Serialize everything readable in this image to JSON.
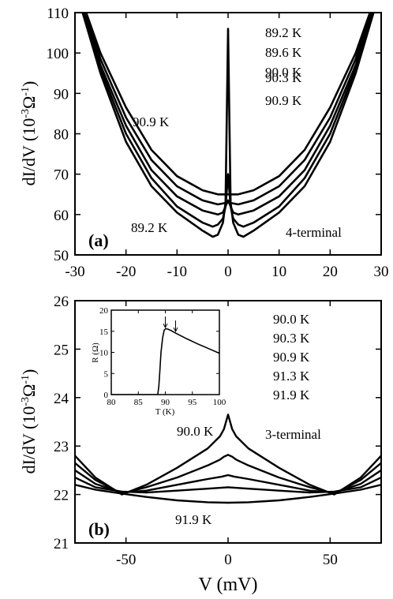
{
  "chart_data": [
    {
      "type": "line",
      "panel_label": "(a)",
      "annotation": "4-terminal",
      "xlabel": "",
      "ylabel": "dI/dV (10-3Ω-1)",
      "ylabel_parts": {
        "main": "dI/dV (10",
        "exp1": "-3",
        "mid": "Ω",
        "exp2": "-1",
        "end": ")"
      },
      "xlim": [
        -30,
        30
      ],
      "ylim": [
        50,
        110
      ],
      "xticks": [
        -30,
        -20,
        -10,
        0,
        10,
        20,
        30
      ],
      "yticks": [
        50,
        60,
        70,
        80,
        90,
        100,
        110
      ],
      "legend": [
        "89.2 K",
        "89.6 K",
        "90.0 K",
        "90.3 K",
        "90.9 K"
      ],
      "curve_labels": {
        "top": "90.9 K",
        "bottom": "89.2 K"
      },
      "series": [
        {
          "name": "89.2 K",
          "x": [
            -28.5,
            -25,
            -20,
            -15,
            -10,
            -5,
            -3,
            -2,
            -1,
            -0.5,
            0,
            0.5,
            1,
            2,
            3,
            5,
            10,
            15,
            20,
            25,
            28.5
          ],
          "y": [
            110,
            95,
            78,
            67,
            60.5,
            56,
            54.5,
            55,
            58,
            63,
            106,
            63,
            58,
            55,
            54.5,
            56,
            60.5,
            67,
            78,
            95,
            110
          ]
        },
        {
          "name": "89.6 K",
          "x": [
            -28.5,
            -25,
            -20,
            -15,
            -10,
            -5,
            -3,
            -2,
            -1,
            -0.5,
            0,
            0.5,
            1,
            2,
            3,
            5,
            10,
            15,
            20,
            25,
            28.5
          ],
          "y": [
            110,
            96,
            80,
            69,
            62,
            58,
            57,
            57.5,
            59,
            62,
            70,
            62,
            59,
            57.5,
            57,
            58,
            62,
            69,
            80,
            96,
            110
          ]
        },
        {
          "name": "90.0 K",
          "x": [
            -28.3,
            -25,
            -20,
            -15,
            -10,
            -5,
            -2,
            -1,
            0,
            1,
            2,
            5,
            10,
            15,
            20,
            25,
            28.3
          ],
          "y": [
            110,
            97,
            82,
            71,
            64.5,
            61,
            60,
            60.5,
            63.5,
            60.5,
            60,
            61,
            64.5,
            71,
            82,
            97,
            110
          ]
        },
        {
          "name": "90.3 K",
          "x": [
            -28,
            -25,
            -20,
            -15,
            -10,
            -5,
            -2,
            0,
            2,
            5,
            10,
            15,
            20,
            25,
            28
          ],
          "y": [
            110,
            98.5,
            84,
            73.5,
            67,
            63.5,
            62.5,
            63,
            62.5,
            63.5,
            67,
            73.5,
            84,
            98.5,
            110
          ]
        },
        {
          "name": "90.9 K",
          "x": [
            -27.8,
            -25,
            -20,
            -15,
            -10,
            -5,
            -2,
            0,
            2,
            5,
            10,
            15,
            20,
            25,
            27.8
          ],
          "y": [
            110,
            100,
            86.5,
            76,
            69.5,
            66,
            65,
            65,
            65,
            66,
            69.5,
            76,
            86.5,
            100,
            110
          ]
        }
      ]
    },
    {
      "type": "line",
      "panel_label": "(b)",
      "annotation": "3-terminal",
      "xlabel": "V (mV)",
      "ylabel": "dI/dV (10-3Ω-1)",
      "ylabel_parts": {
        "main": "dI/dV (10",
        "exp1": "-3",
        "mid": "Ω",
        "exp2": "-1",
        "end": ")"
      },
      "xlim": [
        -75,
        75
      ],
      "ylim": [
        21,
        26
      ],
      "xticks": [
        -50,
        0,
        50
      ],
      "yticks": [
        21,
        22,
        23,
        24,
        25,
        26
      ],
      "legend": [
        "90.0 K",
        "90.3 K",
        "90.9 K",
        "91.3 K",
        "91.9 K"
      ],
      "curve_labels": {
        "top": "90.0 K",
        "bottom": "91.9 K"
      },
      "series": [
        {
          "name": "90.0 K",
          "x": [
            -75,
            -65,
            -52,
            -40,
            -25,
            -10,
            -4,
            -2,
            0,
            2,
            4,
            10,
            25,
            40,
            52,
            65,
            75
          ],
          "y": [
            22.8,
            22.35,
            22.0,
            22.2,
            22.55,
            22.95,
            23.2,
            23.35,
            23.65,
            23.35,
            23.2,
            22.95,
            22.55,
            22.2,
            22.0,
            22.35,
            22.8
          ]
        },
        {
          "name": "90.3 K",
          "x": [
            -75,
            -65,
            -52,
            -40,
            -25,
            -10,
            -4,
            -2,
            0,
            2,
            4,
            10,
            25,
            40,
            52,
            65,
            75
          ],
          "y": [
            22.65,
            22.3,
            22.02,
            22.15,
            22.35,
            22.6,
            22.72,
            22.78,
            22.82,
            22.78,
            22.72,
            22.6,
            22.35,
            22.15,
            22.02,
            22.3,
            22.65
          ]
        },
        {
          "name": "90.9 K",
          "x": [
            -75,
            -65,
            -52,
            -40,
            -25,
            -10,
            -3,
            0,
            3,
            10,
            25,
            40,
            52,
            65,
            75
          ],
          "y": [
            22.5,
            22.22,
            22.04,
            22.08,
            22.2,
            22.32,
            22.37,
            22.4,
            22.37,
            22.32,
            22.2,
            22.08,
            22.04,
            22.22,
            22.5
          ]
        },
        {
          "name": "91.3 K",
          "x": [
            -75,
            -65,
            -52,
            -40,
            -25,
            -10,
            0,
            10,
            25,
            40,
            52,
            65,
            75
          ],
          "y": [
            22.35,
            22.15,
            22.06,
            22.04,
            22.08,
            22.12,
            22.15,
            22.12,
            22.08,
            22.04,
            22.06,
            22.15,
            22.35
          ]
        },
        {
          "name": "91.9 K",
          "x": [
            -75,
            -65,
            -52,
            -40,
            -25,
            -10,
            0,
            10,
            25,
            40,
            52,
            65,
            75
          ],
          "y": [
            22.2,
            22.1,
            22.02,
            21.95,
            21.88,
            21.84,
            21.83,
            21.84,
            21.88,
            21.95,
            22.02,
            22.1,
            22.2
          ]
        }
      ],
      "inset": {
        "type": "line",
        "xlabel": "T (K)",
        "ylabel": "R (Ω)",
        "xlim": [
          80,
          100
        ],
        "ylim": [
          0,
          20
        ],
        "xticks": [
          80,
          85,
          90,
          95,
          100
        ],
        "yticks": [
          0,
          5,
          10,
          15,
          20
        ],
        "arrows_at": [
          90.0,
          91.9
        ],
        "series": [
          {
            "name": "R(T)",
            "x": [
              80,
              88.6,
              88.8,
              89.0,
              89.2,
              89.5,
              89.8,
              90.1,
              90.5,
              91,
              92,
              94,
              96,
              98,
              100
            ],
            "y": [
              0,
              0,
              2,
              6,
              10,
              13.5,
              15.3,
              15.6,
              15.5,
              15.2,
              14.5,
              13.2,
              12,
              10.9,
              9.8
            ]
          }
        ]
      }
    }
  ]
}
